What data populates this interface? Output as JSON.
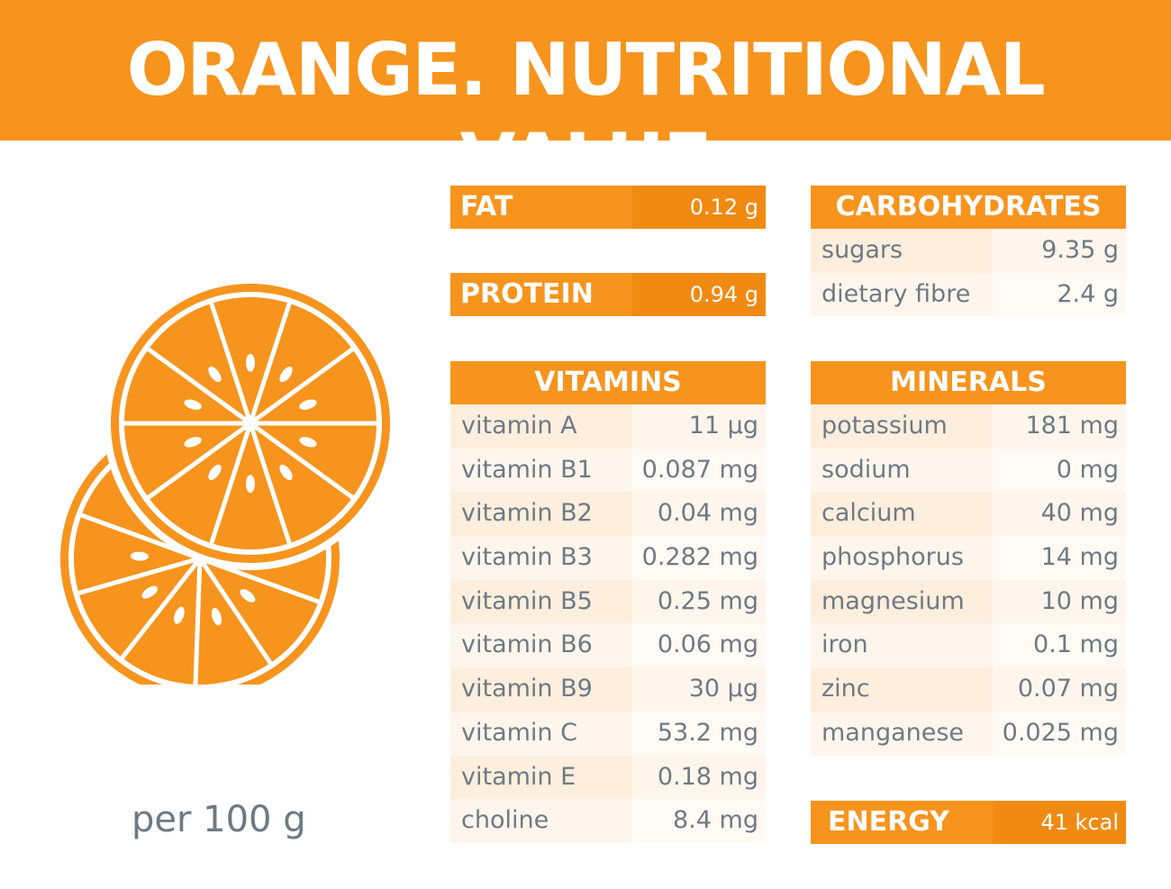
{
  "title": "ORANGE. NUTRITIONAL VALUE",
  "per_serving": "per 100 g",
  "colors": {
    "accent": "#f7941d",
    "accent_dark": "#f08a12",
    "text": "#6e7a84"
  },
  "image": {
    "icon": "orange-slices-icon"
  },
  "fat": {
    "label": "FAT",
    "value": "0.12 g"
  },
  "protein": {
    "label": "PROTEIN",
    "value": "0.94 g"
  },
  "energy": {
    "label": "ENERGY",
    "value": "41 kcal"
  },
  "carbohydrates": {
    "title": "CARBOHYDRATES",
    "rows": [
      {
        "name": "sugars",
        "value": "9.35 g"
      },
      {
        "name": "dietary fibre",
        "value": "2.4 g"
      }
    ]
  },
  "vitamins": {
    "title": "VITAMINS",
    "rows": [
      {
        "name": "vitamin A",
        "value": "11 µg"
      },
      {
        "name": "vitamin B1",
        "value": "0.087 mg"
      },
      {
        "name": "vitamin B2",
        "value": "0.04 mg"
      },
      {
        "name": "vitamin B3",
        "value": "0.282 mg"
      },
      {
        "name": "vitamin B5",
        "value": "0.25 mg"
      },
      {
        "name": "vitamin B6",
        "value": "0.06 mg"
      },
      {
        "name": "vitamin B9",
        "value": "30 µg"
      },
      {
        "name": "vitamin C",
        "value": "53.2 mg"
      },
      {
        "name": "vitamin E",
        "value": "0.18 mg"
      },
      {
        "name": "choline",
        "value": "8.4 mg"
      }
    ]
  },
  "minerals": {
    "title": "MINERALS",
    "rows": [
      {
        "name": "potassium",
        "value": "181 mg"
      },
      {
        "name": "sodium",
        "value": "0 mg"
      },
      {
        "name": "calcium",
        "value": "40 mg"
      },
      {
        "name": "phosphorus",
        "value": "14 mg"
      },
      {
        "name": "magnesium",
        "value": "10 mg"
      },
      {
        "name": "iron",
        "value": "0.1 mg"
      },
      {
        "name": "zinc",
        "value": "0.07 mg"
      },
      {
        "name": "manganese",
        "value": "0.025 mg"
      }
    ]
  }
}
